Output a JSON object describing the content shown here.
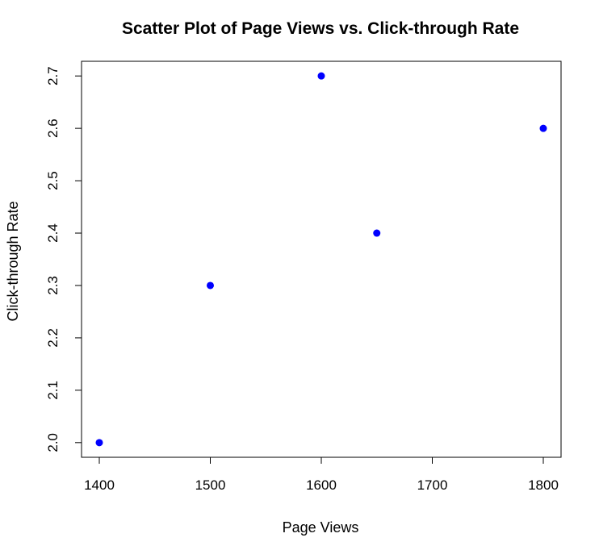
{
  "chart_data": {
    "type": "scatter",
    "title": "Scatter Plot of Page Views vs. Click-through Rate",
    "xlabel": "Page Views",
    "ylabel": "Click-through Rate",
    "x": [
      1400,
      1500,
      1600,
      1650,
      1800
    ],
    "y": [
      2.0,
      2.3,
      2.7,
      2.4,
      2.6
    ],
    "xlim": [
      1384,
      1816
    ],
    "ylim": [
      1.972,
      2.728
    ],
    "xticks": [
      1400,
      1500,
      1600,
      1700,
      1800
    ],
    "xtick_labels": [
      "1400",
      "1500",
      "1600",
      "1700",
      "1800"
    ],
    "yticks": [
      2.0,
      2.1,
      2.2,
      2.3,
      2.4,
      2.5,
      2.6,
      2.7
    ],
    "ytick_labels": [
      "2.0",
      "2.1",
      "2.2",
      "2.3",
      "2.4",
      "2.5",
      "2.6",
      "2.7"
    ],
    "point_color": "#0000ff",
    "grid": false,
    "legend": "none"
  }
}
